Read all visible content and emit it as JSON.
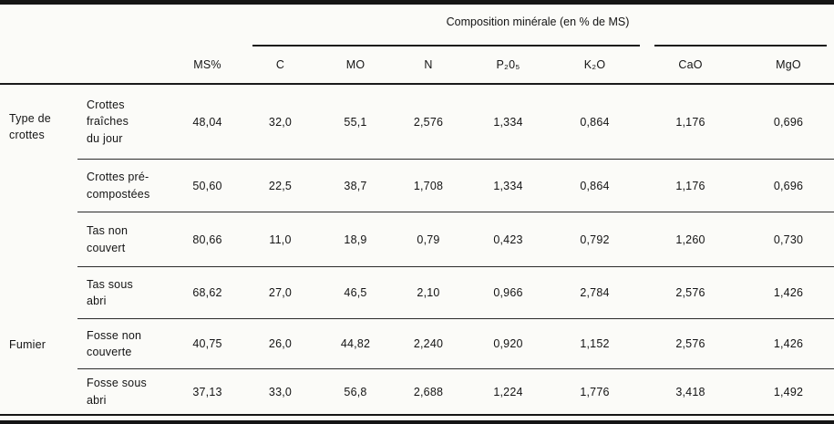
{
  "table": {
    "composition_header": "Composition minérale (en % de MS)",
    "columns": [
      "MS%",
      "C",
      "MO",
      "N",
      "P₂0₅",
      "K₂O",
      "CaO",
      "MgO"
    ],
    "groups": [
      {
        "label": "Type de\ncrottes"
      },
      {
        "label": "Fumier"
      }
    ],
    "rows": [
      {
        "label": "Crottes\nfraîches\ndu jour",
        "values": [
          "48,04",
          "32,0",
          "55,1",
          "2,576",
          "1,334",
          "0,864",
          "1,176",
          "0,696"
        ]
      },
      {
        "label": "Crottes pré-\ncompostées",
        "values": [
          "50,60",
          "22,5",
          "38,7",
          "1,708",
          "1,334",
          "0,864",
          "1,176",
          "0,696"
        ]
      },
      {
        "label": "Tas non\ncouvert",
        "values": [
          "80,66",
          "11,0",
          "18,9",
          "0,79",
          "0,423",
          "0,792",
          "1,260",
          "0,730"
        ]
      },
      {
        "label": "Tas sous\nabri",
        "values": [
          "68,62",
          "27,0",
          "46,5",
          "2,10",
          "0,966",
          "2,784",
          "2,576",
          "1,426"
        ]
      },
      {
        "label": "Fosse non\ncouverte",
        "values": [
          "40,75",
          "26,0",
          "44,82",
          "2,240",
          "0,920",
          "1,152",
          "2,576",
          "1,426"
        ]
      },
      {
        "label": "Fosse sous\nabri",
        "values": [
          "37,13",
          "33,0",
          "56,8",
          "2,688",
          "1,224",
          "1,776",
          "3,418",
          "1,492"
        ]
      }
    ]
  },
  "chart_data": {
    "type": "table",
    "title": "Composition minérale (en % de MS)",
    "row_groups": [
      {
        "group": "Type de crottes",
        "rows": [
          "Crottes fraîches du jour",
          "Crottes pré-compostées"
        ]
      },
      {
        "group": "Fumier",
        "rows": [
          "Tas non couvert",
          "Tas sous abri",
          "Fosse non couverte",
          "Fosse sous abri"
        ]
      }
    ],
    "columns": [
      "MS%",
      "C",
      "MO",
      "N",
      "P2O5",
      "K2O",
      "CaO",
      "MgO"
    ],
    "values": [
      [
        48.04,
        32.0,
        55.1,
        2.576,
        1.334,
        0.864,
        1.176,
        0.696
      ],
      [
        50.6,
        22.5,
        38.7,
        1.708,
        1.334,
        0.864,
        1.176,
        0.696
      ],
      [
        80.66,
        11.0,
        18.9,
        0.79,
        0.423,
        0.792,
        1.26,
        0.73
      ],
      [
        68.62,
        27.0,
        46.5,
        2.1,
        0.966,
        2.784,
        2.576,
        1.426
      ],
      [
        40.75,
        26.0,
        44.82,
        2.24,
        0.92,
        1.152,
        2.576,
        1.426
      ],
      [
        37.13,
        33.0,
        56.8,
        2.688,
        1.224,
        1.776,
        3.418,
        1.492
      ]
    ]
  }
}
